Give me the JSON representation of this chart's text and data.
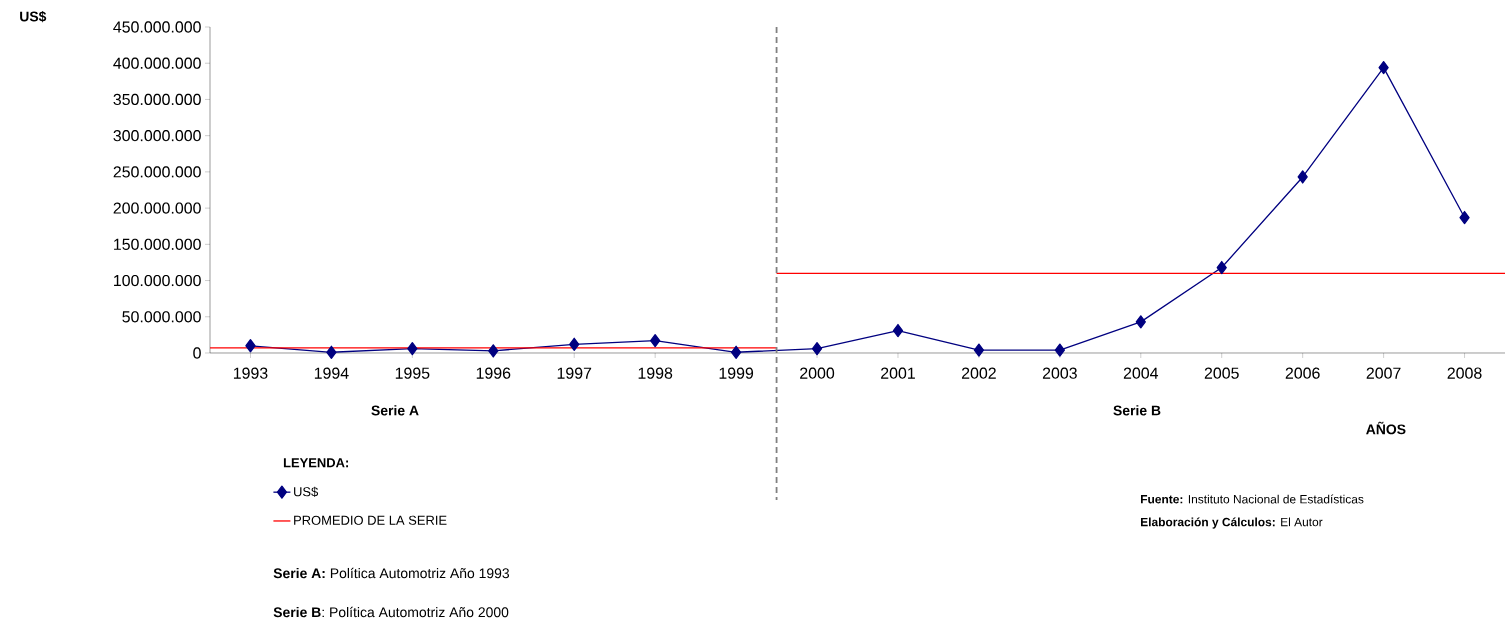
{
  "chart_data": {
    "type": "line",
    "ylabel": "US$",
    "xlabel": "AÑOS",
    "legend_title": "LEYENDA:",
    "legend": "bottom left",
    "marker": "diamond",
    "x": [
      1993,
      1994,
      1995,
      1996,
      1997,
      1998,
      1999,
      2000,
      2001,
      2002,
      2003,
      2004,
      2005,
      2006,
      2007,
      2008
    ],
    "xlim": [
      1992.5,
      2008.5
    ],
    "xticks": [
      1993,
      1994,
      1995,
      1996,
      1997,
      1998,
      1999,
      2000,
      2001,
      2002,
      2003,
      2004,
      2005,
      2006,
      2007,
      2008
    ],
    "ylim": [
      0,
      450000000
    ],
    "yticks": [
      0,
      {
        "value": 50000000,
        "label": "50.000.000"
      },
      {
        "value": 100000000,
        "label": "100.000.000"
      },
      {
        "value": 150000000,
        "label": "150.000.000"
      },
      {
        "value": 200000000,
        "label": "200.000.000"
      },
      {
        "value": 250000000,
        "label": "250.000.000"
      },
      {
        "value": 300000000,
        "label": "300.000.000"
      },
      {
        "value": 350000000,
        "label": "350.000.000"
      },
      {
        "value": 400000000,
        "label": "400.000.000"
      },
      {
        "value": 450000000,
        "label": "450.000.000"
      }
    ],
    "series": [
      {
        "name": "US$",
        "color": "#000080",
        "values": [
          10000000,
          1000000,
          6000000,
          3000000,
          12000000,
          17000000,
          1000000,
          6000000,
          31000000,
          4000000,
          4000000,
          43000000,
          118000000,
          243000000,
          394000000,
          187000000
        ]
      },
      {
        "name": "PROMEDIO DE LA SERIE",
        "color": "#ff0000",
        "type": "line",
        "marker": "none",
        "x": [
          1992.5,
          1999.5
        ],
        "values": [
          7000000,
          7000000
        ]
      },
      {
        "color": "#ff0000",
        "type": "line",
        "marker": "none",
        "x": [
          1999.5,
          2008.5
        ],
        "values": [
          110000000,
          110000000
        ]
      }
    ],
    "ref_lines": [
      {
        "axis": "x",
        "value": 1999.5,
        "color": "#808080",
        "line_style": "dashed"
      }
    ],
    "annotations": [
      "Serie A",
      "Serie B",
      "**Serie A:** Política Automotriz Año 1993",
      "**Serie B**: Política Automotriz Año 2000",
      "**Fuente:** Instituto Nacional de Estadísticas",
      "**Elaboración y Cálculos:** El Autor"
    ]
  }
}
